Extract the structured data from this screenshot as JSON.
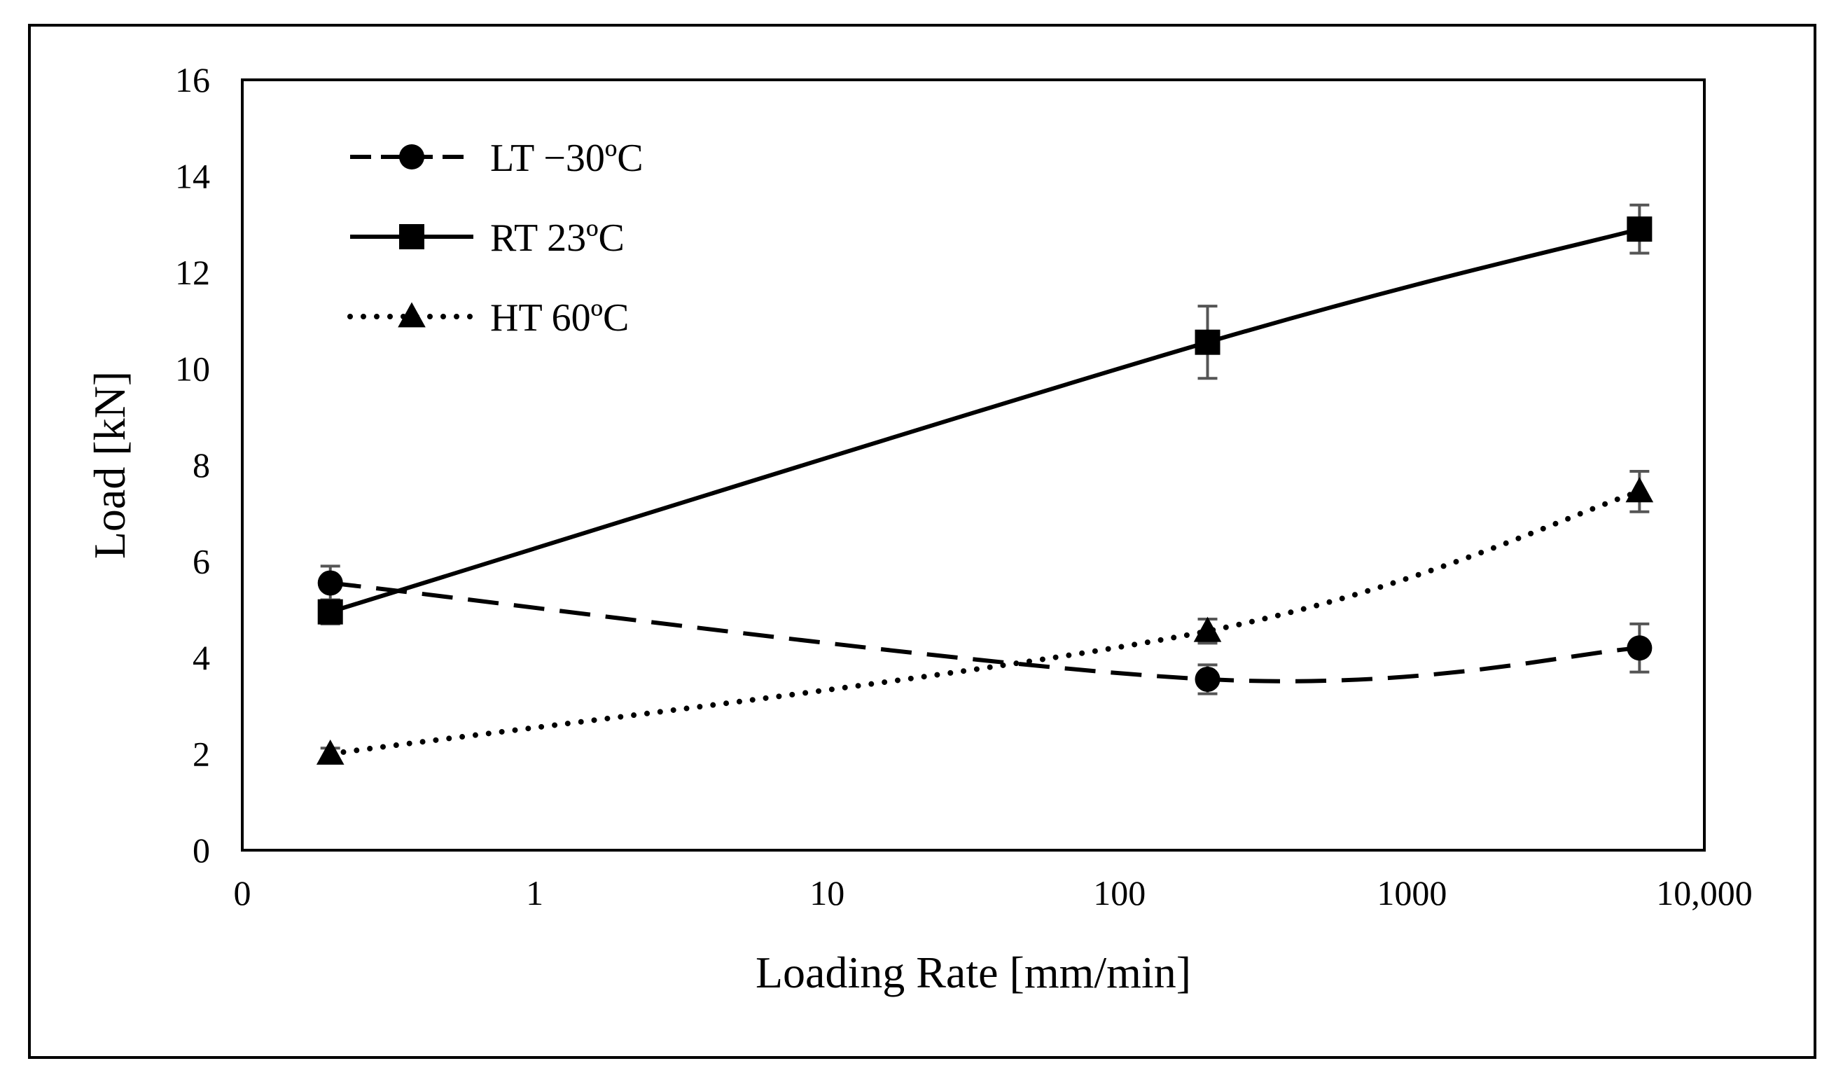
{
  "chart_data": {
    "type": "line",
    "title": "",
    "xlabel": "Loading Rate [mm/min]",
    "ylabel": "Load [kN]",
    "xscale": "log",
    "xlim": [
      0.1,
      10000
    ],
    "ylim": [
      0,
      16
    ],
    "xticks": [
      {
        "value": 0.1,
        "label": "0"
      },
      {
        "value": 1,
        "label": "1"
      },
      {
        "value": 10,
        "label": "10"
      },
      {
        "value": 100,
        "label": "100"
      },
      {
        "value": 1000,
        "label": "1000"
      },
      {
        "value": 10000,
        "label": "10,000"
      }
    ],
    "yticks": [
      0,
      2,
      4,
      6,
      8,
      10,
      12,
      14,
      16
    ],
    "grid": false,
    "legend_position": "top-left",
    "x": [
      0.2,
      200,
      6000
    ],
    "series": [
      {
        "name": "LT −30ºC",
        "line_style": "dashed",
        "marker": "circle",
        "color": "#000000",
        "values": [
          5.55,
          3.55,
          4.2
        ],
        "errors": [
          0.35,
          0.3,
          0.5
        ]
      },
      {
        "name": "RT 23ºC",
        "line_style": "solid",
        "marker": "square",
        "color": "#000000",
        "values": [
          4.95,
          10.55,
          12.9
        ],
        "errors": [
          0.25,
          0.75,
          0.5
        ]
      },
      {
        "name": "HT 60ºC",
        "line_style": "dotted",
        "marker": "triangle",
        "color": "#000000",
        "values": [
          2.0,
          4.55,
          7.45
        ],
        "errors": [
          0.12,
          0.25,
          0.42
        ]
      }
    ]
  }
}
